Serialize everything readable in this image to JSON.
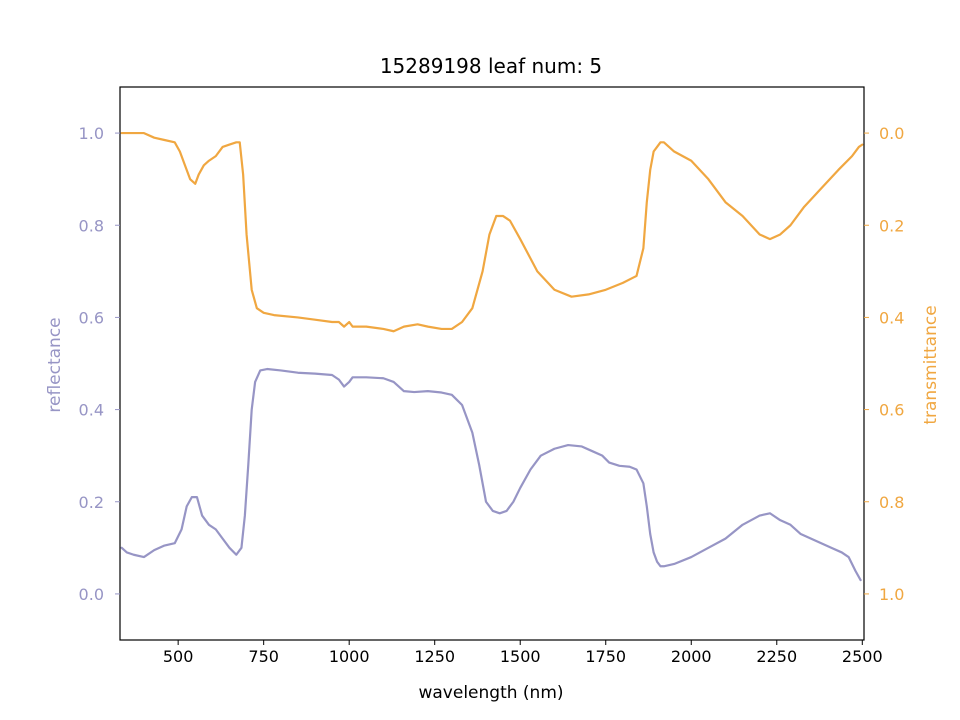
{
  "chart_data": {
    "type": "line",
    "title": "15289198 leaf num: 5",
    "xlabel": "wavelength (nm)",
    "ylabel_left": "reflectance",
    "ylabel_right": "transmittance",
    "xlim": [
      330,
      2505
    ],
    "ylim_left": [
      -0.1,
      1.1
    ],
    "ylim_right": [
      1.1,
      -0.1
    ],
    "right_axis_inverted": true,
    "x_ticks": [
      500,
      750,
      1000,
      1250,
      1500,
      1750,
      2000,
      2250,
      2500
    ],
    "y_ticks_left": [
      0.0,
      0.2,
      0.4,
      0.6,
      0.8,
      1.0
    ],
    "y_ticks_right": [
      0.0,
      0.2,
      0.4,
      0.6,
      0.8,
      1.0
    ],
    "y_tick_labels_left": [
      "0.0",
      "0.2",
      "0.4",
      "0.6",
      "0.8",
      "1.0"
    ],
    "y_tick_labels_right": [
      "0.0",
      "0.2",
      "0.4",
      "0.6",
      "0.8",
      "1.0"
    ],
    "grid": false,
    "colors": {
      "reflectance": "#9795c5",
      "transmittance": "#f0a741",
      "axes": "#000000"
    },
    "series": [
      {
        "name": "reflectance",
        "axis": "left",
        "x": [
          335,
          350,
          370,
          400,
          430,
          460,
          490,
          510,
          525,
          540,
          555,
          570,
          590,
          610,
          630,
          650,
          670,
          685,
          695,
          705,
          715,
          725,
          740,
          760,
          800,
          850,
          900,
          950,
          970,
          985,
          1000,
          1010,
          1050,
          1100,
          1130,
          1160,
          1190,
          1230,
          1270,
          1300,
          1330,
          1360,
          1380,
          1400,
          1420,
          1440,
          1460,
          1480,
          1500,
          1530,
          1560,
          1600,
          1640,
          1680,
          1710,
          1740,
          1760,
          1790,
          1820,
          1840,
          1860,
          1870,
          1880,
          1890,
          1900,
          1910,
          1920,
          1950,
          2000,
          2050,
          2100,
          2150,
          2200,
          2230,
          2260,
          2290,
          2320,
          2350,
          2380,
          2410,
          2440,
          2460,
          2480,
          2495
        ],
        "y": [
          0.1,
          0.09,
          0.085,
          0.08,
          0.095,
          0.105,
          0.11,
          0.14,
          0.19,
          0.21,
          0.21,
          0.17,
          0.15,
          0.14,
          0.12,
          0.1,
          0.085,
          0.1,
          0.17,
          0.28,
          0.4,
          0.46,
          0.485,
          0.488,
          0.485,
          0.48,
          0.478,
          0.475,
          0.465,
          0.45,
          0.46,
          0.47,
          0.47,
          0.468,
          0.46,
          0.44,
          0.438,
          0.44,
          0.437,
          0.432,
          0.41,
          0.35,
          0.28,
          0.2,
          0.18,
          0.175,
          0.18,
          0.2,
          0.23,
          0.27,
          0.3,
          0.315,
          0.323,
          0.32,
          0.31,
          0.3,
          0.285,
          0.278,
          0.276,
          0.27,
          0.24,
          0.19,
          0.13,
          0.09,
          0.07,
          0.06,
          0.06,
          0.065,
          0.08,
          0.1,
          0.12,
          0.15,
          0.17,
          0.175,
          0.16,
          0.15,
          0.13,
          0.12,
          0.11,
          0.1,
          0.09,
          0.08,
          0.05,
          0.03
        ]
      },
      {
        "name": "transmittance",
        "axis": "right",
        "x": [
          335,
          350,
          370,
          400,
          430,
          460,
          490,
          505,
          520,
          535,
          550,
          560,
          575,
          590,
          610,
          630,
          650,
          670,
          680,
          690,
          700,
          715,
          730,
          750,
          780,
          850,
          900,
          950,
          970,
          985,
          1000,
          1010,
          1050,
          1100,
          1130,
          1160,
          1200,
          1230,
          1270,
          1300,
          1330,
          1360,
          1390,
          1410,
          1430,
          1450,
          1470,
          1500,
          1550,
          1600,
          1650,
          1700,
          1750,
          1800,
          1840,
          1860,
          1870,
          1880,
          1890,
          1900,
          1910,
          1920,
          1950,
          2000,
          2050,
          2100,
          2150,
          2200,
          2230,
          2260,
          2290,
          2330,
          2380,
          2430,
          2470,
          2490,
          2500
        ],
        "y": [
          0.0,
          0.0,
          0.0,
          0.0,
          0.01,
          0.015,
          0.02,
          0.04,
          0.07,
          0.1,
          0.11,
          0.09,
          0.07,
          0.06,
          0.05,
          0.03,
          0.025,
          0.02,
          0.02,
          0.09,
          0.22,
          0.34,
          0.38,
          0.39,
          0.395,
          0.4,
          0.405,
          0.41,
          0.41,
          0.42,
          0.41,
          0.42,
          0.42,
          0.425,
          0.43,
          0.42,
          0.415,
          0.42,
          0.425,
          0.425,
          0.41,
          0.38,
          0.3,
          0.22,
          0.18,
          0.18,
          0.19,
          0.23,
          0.3,
          0.34,
          0.355,
          0.35,
          0.34,
          0.325,
          0.31,
          0.25,
          0.15,
          0.08,
          0.04,
          0.03,
          0.02,
          0.02,
          0.04,
          0.06,
          0.1,
          0.15,
          0.18,
          0.22,
          0.23,
          0.22,
          0.2,
          0.16,
          0.12,
          0.08,
          0.05,
          0.03,
          0.025
        ]
      }
    ]
  }
}
